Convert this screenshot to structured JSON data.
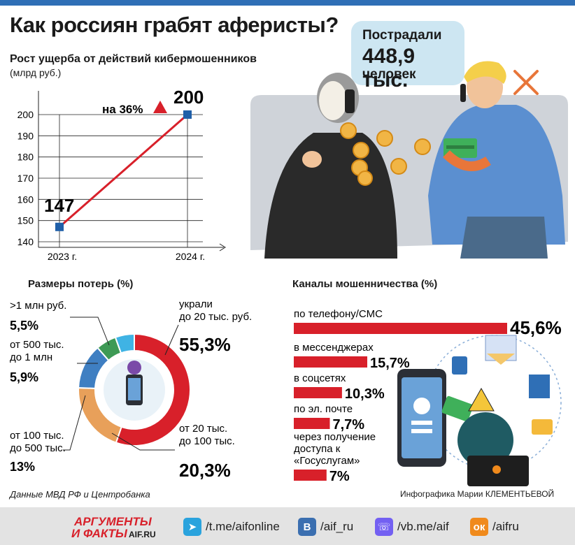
{
  "title": "Как россиян грабят аферисты?",
  "bubble": {
    "line1": "Пострадали",
    "line2": "448,9 тыс.",
    "line3": "человек"
  },
  "source": "Данные МВД РФ и Центробанка",
  "credit": "Инфографика Марии КЛЕМЕНТЬЕВОЙ",
  "footer": {
    "logo_top": "АРГУМЕНТЫ",
    "logo_bottom": "И ФАКТЫ",
    "logo_site": "AIF.RU",
    "links": [
      {
        "icon": "telegram-icon",
        "text": "/t.me/aifonline",
        "color": "#2aa3dd"
      },
      {
        "icon": "vk-icon",
        "text": "/aif_ru",
        "color": "#3b6fb0"
      },
      {
        "icon": "viber-icon",
        "text": "/vb.me/aif",
        "color": "#7360f2"
      },
      {
        "icon": "ok-icon",
        "text": "/aifru",
        "color": "#f08a1c"
      }
    ]
  },
  "chart_data": [
    {
      "type": "line",
      "title": "Рост ущерба от действий кибермошенников",
      "ylabel": "(млрд руб.)",
      "x": [
        "2023 г.",
        "2024 г."
      ],
      "values": [
        147,
        200
      ],
      "data_labels": [
        "147",
        "200"
      ],
      "ylim": [
        140,
        200
      ],
      "yticks": [
        140,
        150,
        160,
        170,
        180,
        190,
        200
      ],
      "annotation": "на 36%",
      "grid": true,
      "colors": {
        "line": "#d8202a",
        "marker": "#1f5fa8"
      }
    },
    {
      "type": "pie",
      "title": "Размеры потерь (%)",
      "slices": [
        {
          "label_lines": [
            "украли",
            "до 20 тыс. руб."
          ],
          "value": 55.3,
          "display": "55,3%",
          "color": "#d8202a"
        },
        {
          "label_lines": [
            "от 20 тыс.",
            "до 100 тыс."
          ],
          "value": 20.3,
          "display": "20,3%",
          "color": "#e8a05a"
        },
        {
          "label_lines": [
            "от 100 тыс.",
            "до 500 тыс."
          ],
          "value": 13,
          "display": "13%",
          "color": "#3f7fc2"
        },
        {
          "label_lines": [
            "от 500 тыс.",
            "до 1 млн"
          ],
          "value": 5.9,
          "display": "5,9%",
          "color": "#3e9a55"
        },
        {
          "label_lines": [
            ">1 млн руб."
          ],
          "value": 5.5,
          "display": "5,5%",
          "color": "#3fb3e4"
        }
      ]
    },
    {
      "type": "bar",
      "title": "Каналы мошенничества (%)",
      "categories": [
        "по телефону/СМС",
        "в мессенджерах",
        "в соцсетях",
        "по эл. почте",
        "через получение доступа к «Госуслугам»"
      ],
      "category_lines": [
        [
          "по телефону/СМС"
        ],
        [
          "в мессенджерах"
        ],
        [
          "в соцсетях"
        ],
        [
          "по эл. почте"
        ],
        [
          "через получение",
          "доступа к",
          "«Госуслугам»"
        ]
      ],
      "values": [
        45.6,
        15.7,
        10.3,
        7.7,
        7
      ],
      "display": [
        "45,6%",
        "15,7%",
        "10,3%",
        "7,7%",
        "7%"
      ],
      "color": "#d8202a"
    }
  ]
}
